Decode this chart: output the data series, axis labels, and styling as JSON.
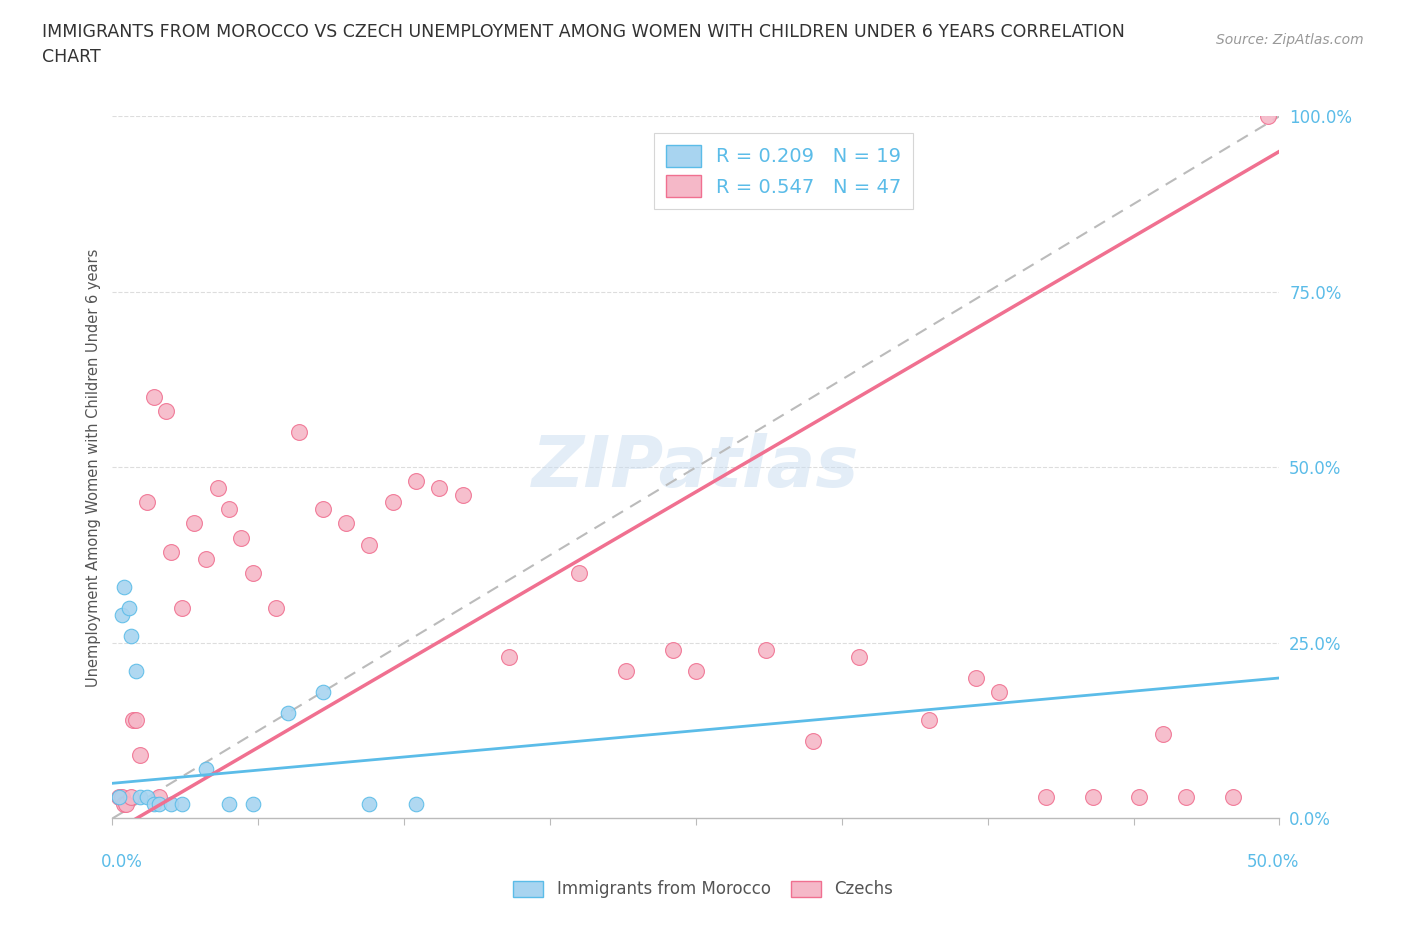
{
  "title": "IMMIGRANTS FROM MOROCCO VS CZECH UNEMPLOYMENT AMONG WOMEN WITH CHILDREN UNDER 6 YEARS CORRELATION\nCHART",
  "source": "Source: ZipAtlas.com",
  "ylabel": "Unemployment Among Women with Children Under 6 years",
  "ytick_values": [
    0,
    25,
    50,
    75,
    100
  ],
  "xlim": [
    0,
    50
  ],
  "ylim": [
    0,
    100
  ],
  "watermark": "ZIPatlas",
  "blue_color": "#A8D4F0",
  "pink_color": "#F5B8C8",
  "blue_edge_color": "#5BBCE8",
  "pink_edge_color": "#F07090",
  "blue_line_color": "#5BBCE8",
  "pink_line_color": "#F07090",
  "dash_line_color": "#BBBBBB",
  "grid_color": "#DDDDDD",
  "blue_scatter_x": [
    0.3,
    0.4,
    0.5,
    0.7,
    0.8,
    1.0,
    1.2,
    1.5,
    1.8,
    2.0,
    2.5,
    3.0,
    4.0,
    5.0,
    6.0,
    7.5,
    9.0,
    11.0,
    13.0
  ],
  "blue_scatter_y": [
    3,
    29,
    33,
    30,
    26,
    21,
    3,
    3,
    2,
    2,
    2,
    2,
    7,
    2,
    2,
    15,
    18,
    2,
    2
  ],
  "pink_scatter_x": [
    0.3,
    0.4,
    0.5,
    0.6,
    0.8,
    0.9,
    1.0,
    1.2,
    1.5,
    1.8,
    2.0,
    2.3,
    2.5,
    3.0,
    3.5,
    4.0,
    4.5,
    5.0,
    5.5,
    6.0,
    7.0,
    8.0,
    9.0,
    10.0,
    11.0,
    12.0,
    13.0,
    14.0,
    15.0,
    17.0,
    20.0,
    22.0,
    24.0,
    25.0,
    28.0,
    30.0,
    32.0,
    35.0,
    37.0,
    38.0,
    40.0,
    42.0,
    44.0,
    45.0,
    46.0,
    48.0,
    49.5
  ],
  "pink_scatter_y": [
    3,
    3,
    2,
    2,
    3,
    14,
    14,
    9,
    45,
    60,
    3,
    58,
    38,
    30,
    42,
    37,
    47,
    44,
    40,
    35,
    30,
    55,
    44,
    42,
    39,
    45,
    48,
    47,
    46,
    23,
    35,
    21,
    24,
    21,
    24,
    11,
    23,
    14,
    20,
    18,
    3,
    3,
    3,
    12,
    3,
    3,
    100
  ],
  "legend1_text": "R = 0.209   N = 19",
  "legend2_text": "R = 0.547   N = 47",
  "bottom_legend1": "Immigrants from Morocco",
  "bottom_legend2": "Czechs"
}
